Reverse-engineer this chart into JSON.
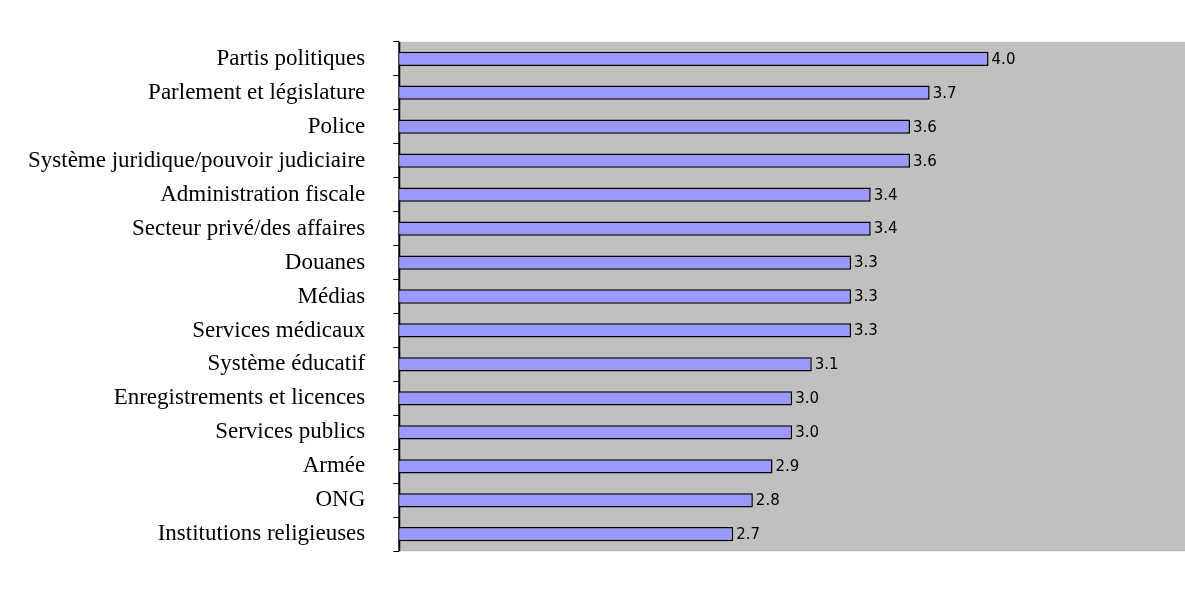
{
  "chart_data": {
    "type": "bar",
    "orientation": "horizontal",
    "categories": [
      "Partis politiques",
      "Parlement et législature",
      "Police",
      "Système juridique/pouvoir judiciaire",
      "Administration fiscale",
      "Secteur privé/des affaires",
      "Douanes",
      "Médias",
      "Services médicaux",
      "Système éducatif",
      "Enregistrements et licences",
      "Services publics",
      "Armée",
      "ONG",
      "Institutions religieuses"
    ],
    "values": [
      4.0,
      3.7,
      3.6,
      3.6,
      3.4,
      3.4,
      3.3,
      3.3,
      3.3,
      3.1,
      3.0,
      3.0,
      2.9,
      2.8,
      2.7
    ],
    "value_labels": [
      "4.0",
      "3.7",
      "3.6",
      "3.6",
      "3.4",
      "3.4",
      "3.3",
      "3.3",
      "3.3",
      "3.1",
      "3.0",
      "3.0",
      "2.9",
      "2.8",
      "2.7"
    ],
    "color": "#9999ff",
    "xlim": [
      1,
      5
    ],
    "tick_labels": "y",
    "legend": false
  }
}
